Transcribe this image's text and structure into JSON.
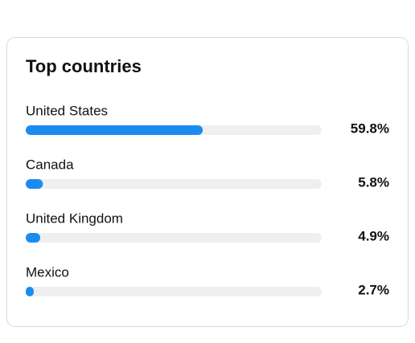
{
  "chart_data": {
    "type": "bar",
    "orientation": "horizontal",
    "title": "Top countries",
    "categories": [
      "United States",
      "Canada",
      "United Kingdom",
      "Mexico"
    ],
    "values": [
      59.8,
      5.8,
      4.9,
      2.7
    ],
    "value_labels": [
      "59.8%",
      "5.8%",
      "4.9%",
      "2.7%"
    ],
    "color": "#1a8cf0",
    "track_color": "#efefef",
    "xlim": [
      0,
      100
    ]
  }
}
